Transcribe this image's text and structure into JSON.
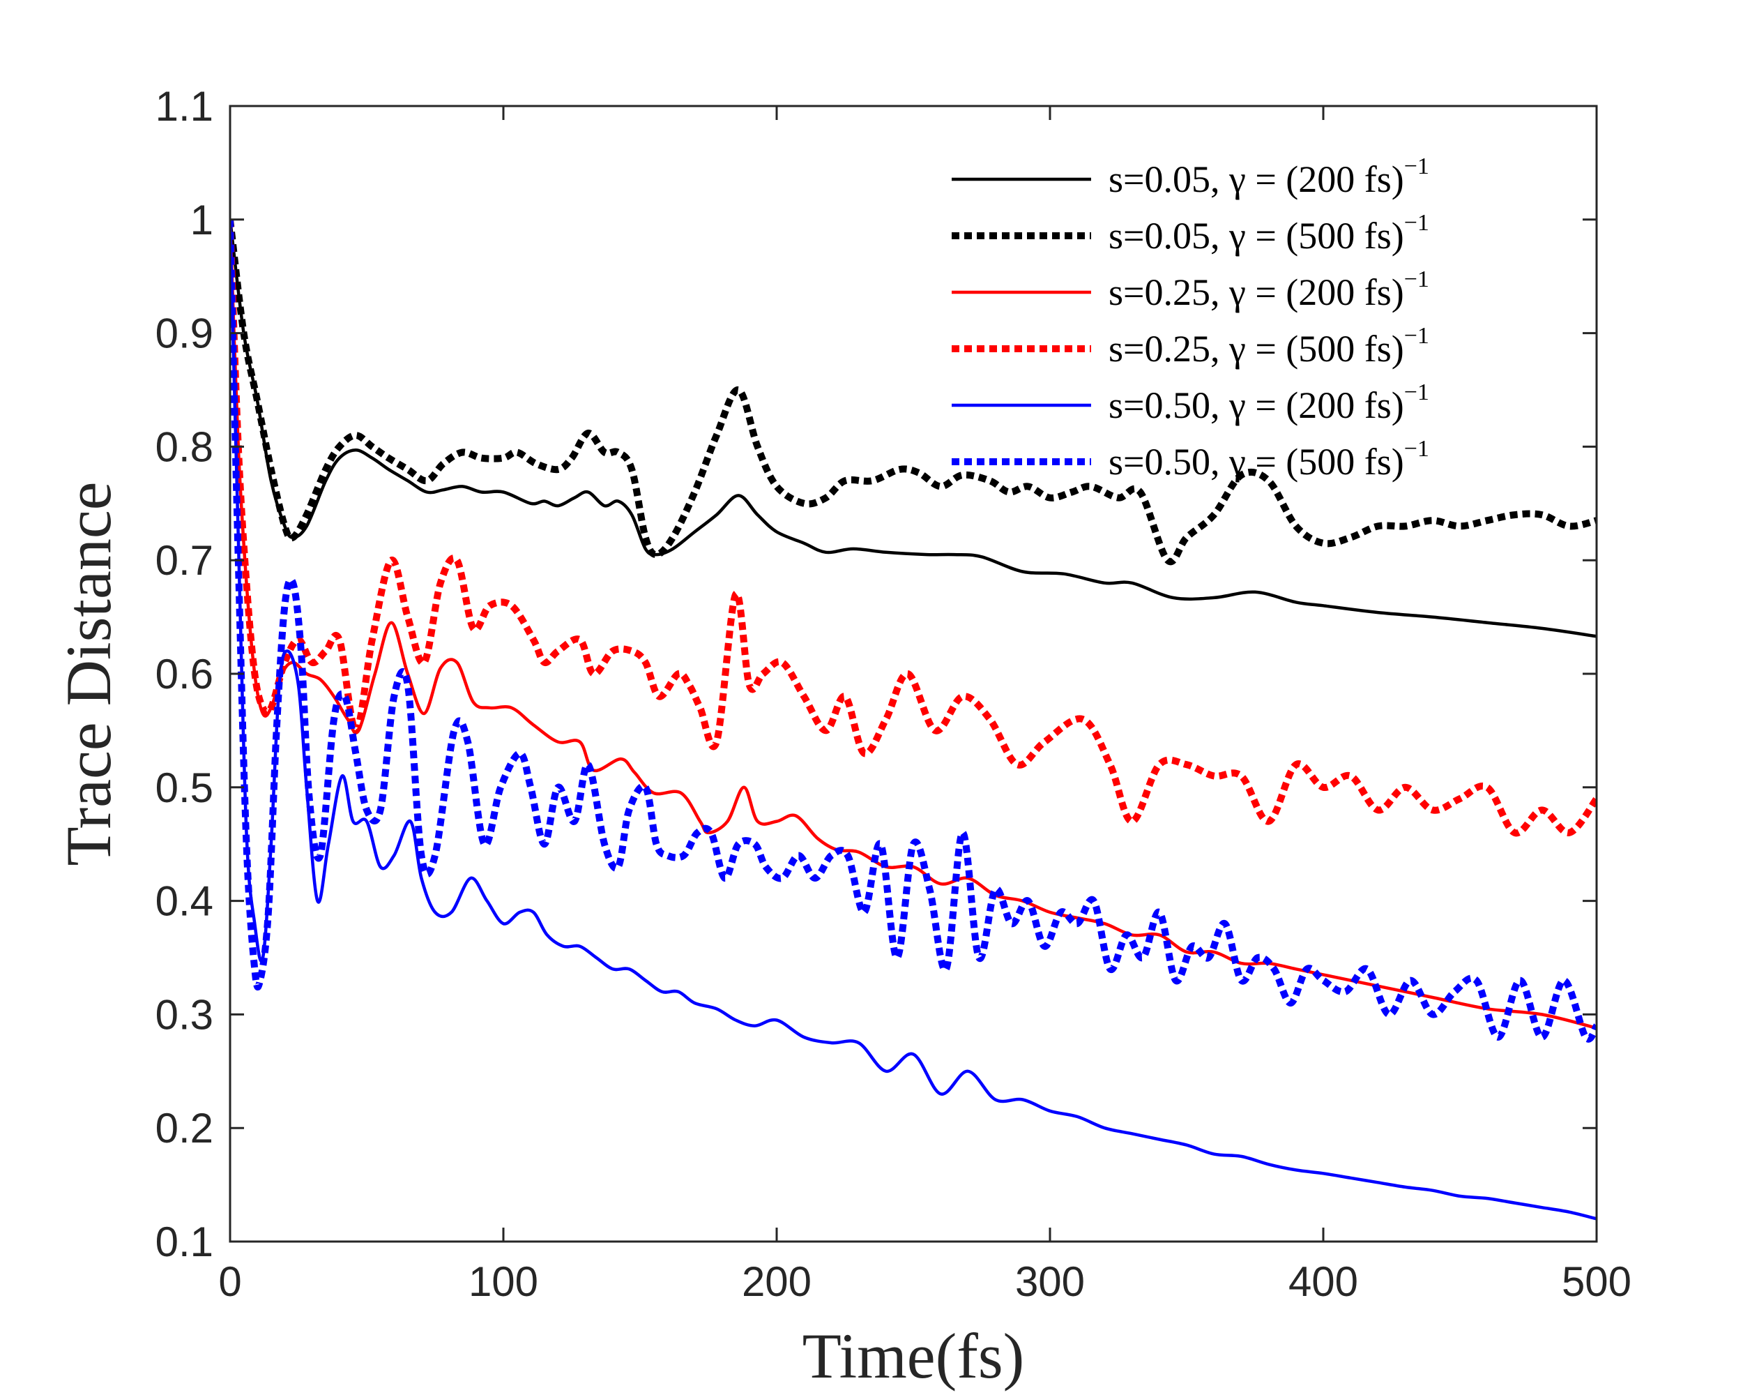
{
  "chart_data": {
    "type": "line",
    "xlabel": "Time(fs)",
    "ylabel": "Trace Distance",
    "xlim": [
      0,
      500
    ],
    "ylim": [
      0.1,
      1.1
    ],
    "x_ticks": [
      0,
      100,
      200,
      300,
      400,
      500
    ],
    "x_tick_labels": [
      "0",
      "100",
      "200",
      "300",
      "400",
      "500"
    ],
    "y_ticks": [
      0.1,
      0.2,
      0.3,
      0.4,
      0.5,
      0.6,
      0.7,
      0.8,
      0.9,
      1.0,
      1.1
    ],
    "y_tick_labels": [
      "0.1",
      "0.2",
      "0.3",
      "0.4",
      "0.5",
      "0.6",
      "0.7",
      "0.8",
      "0.9",
      "1",
      "1.1"
    ],
    "grid": false,
    "legend_position": "top-right",
    "series": [
      {
        "name": "s=0.05, γ = (200 fs)^−1",
        "legend_main": "s=0.05, γ = (200 fs)",
        "legend_sup": "−1",
        "color": "#000000",
        "style": "solid",
        "x": [
          0,
          5,
          10,
          15,
          20,
          23,
          28,
          35,
          40,
          46,
          52,
          58,
          65,
          72,
          78,
          85,
          92,
          100,
          110,
          115,
          120,
          126,
          131,
          137,
          142,
          147,
          152,
          156,
          162,
          170,
          178,
          186,
          193,
          200,
          210,
          218,
          228,
          240,
          255,
          265,
          275,
          290,
          305,
          320,
          330,
          345,
          360,
          375,
          390,
          400,
          420,
          440,
          460,
          480,
          500
        ],
        "y": [
          1.0,
          0.9,
          0.84,
          0.77,
          0.73,
          0.72,
          0.73,
          0.77,
          0.79,
          0.797,
          0.79,
          0.78,
          0.77,
          0.76,
          0.762,
          0.765,
          0.76,
          0.76,
          0.75,
          0.752,
          0.748,
          0.755,
          0.76,
          0.748,
          0.752,
          0.74,
          0.71,
          0.705,
          0.71,
          0.725,
          0.74,
          0.757,
          0.74,
          0.725,
          0.715,
          0.707,
          0.71,
          0.707,
          0.705,
          0.705,
          0.703,
          0.69,
          0.688,
          0.68,
          0.68,
          0.667,
          0.667,
          0.672,
          0.663,
          0.66,
          0.654,
          0.65,
          0.645,
          0.64,
          0.633
        ]
      },
      {
        "name": "s=0.05, γ = (500 fs)^−1",
        "legend_main": "s=0.05, γ = (500 fs)",
        "legend_sup": "−1",
        "color": "#000000",
        "style": "dotted",
        "x": [
          0,
          5,
          10,
          15,
          20,
          23,
          28,
          35,
          40,
          46,
          52,
          58,
          65,
          72,
          78,
          85,
          92,
          100,
          105,
          112,
          120,
          125,
          131,
          137,
          142,
          147,
          152,
          156,
          162,
          170,
          178,
          186,
          193,
          200,
          210,
          218,
          225,
          235,
          245,
          252,
          260,
          268,
          278,
          285,
          292,
          300,
          308,
          315,
          325,
          333,
          343,
          350,
          360,
          370,
          380,
          390,
          400,
          410,
          420,
          430,
          440,
          450,
          460,
          470,
          480,
          490,
          500
        ],
        "y": [
          1.0,
          0.9,
          0.84,
          0.78,
          0.73,
          0.72,
          0.74,
          0.78,
          0.8,
          0.81,
          0.8,
          0.79,
          0.78,
          0.77,
          0.785,
          0.795,
          0.79,
          0.79,
          0.795,
          0.785,
          0.78,
          0.79,
          0.812,
          0.795,
          0.795,
          0.78,
          0.72,
          0.705,
          0.72,
          0.76,
          0.81,
          0.85,
          0.8,
          0.765,
          0.75,
          0.755,
          0.77,
          0.77,
          0.78,
          0.777,
          0.765,
          0.775,
          0.77,
          0.76,
          0.765,
          0.755,
          0.76,
          0.765,
          0.755,
          0.76,
          0.7,
          0.72,
          0.74,
          0.775,
          0.77,
          0.73,
          0.715,
          0.72,
          0.73,
          0.73,
          0.735,
          0.73,
          0.735,
          0.74,
          0.74,
          0.73,
          0.735
        ]
      },
      {
        "name": "s=0.25, γ = (200 fs)^−1",
        "legend_main": "s=0.25, γ = (200 fs)",
        "legend_sup": "−1",
        "color": "#ff0000",
        "style": "solid",
        "x": [
          0,
          3,
          6,
          9,
          12,
          15,
          19,
          23,
          28,
          33,
          38,
          43,
          47,
          53,
          59,
          65,
          71,
          77,
          83,
          89,
          95,
          103,
          111,
          120,
          128,
          133,
          143,
          148,
          155,
          165,
          172,
          175,
          182,
          188,
          193,
          200,
          207,
          215,
          222,
          230,
          240,
          250,
          260,
          270,
          280,
          290,
          300,
          310,
          320,
          330,
          340,
          350,
          360,
          370,
          380,
          390,
          400,
          420,
          440,
          460,
          480,
          500
        ],
        "y": [
          1.0,
          0.8,
          0.68,
          0.6,
          0.565,
          0.57,
          0.6,
          0.61,
          0.6,
          0.595,
          0.58,
          0.56,
          0.55,
          0.6,
          0.645,
          0.6,
          0.565,
          0.605,
          0.61,
          0.575,
          0.57,
          0.57,
          0.555,
          0.54,
          0.54,
          0.515,
          0.525,
          0.513,
          0.495,
          0.495,
          0.47,
          0.46,
          0.47,
          0.5,
          0.47,
          0.47,
          0.475,
          0.455,
          0.445,
          0.443,
          0.43,
          0.43,
          0.415,
          0.42,
          0.405,
          0.4,
          0.39,
          0.385,
          0.38,
          0.37,
          0.37,
          0.355,
          0.355,
          0.345,
          0.345,
          0.34,
          0.335,
          0.325,
          0.315,
          0.305,
          0.3,
          0.288
        ]
      },
      {
        "name": "s=0.25, γ = (500 fs)^−1",
        "legend_main": "s=0.25, γ = (500 fs)",
        "legend_sup": "−1",
        "color": "#ff0000",
        "style": "dotted",
        "x": [
          0,
          3,
          6,
          9,
          12,
          15,
          20,
          25,
          30,
          35,
          40,
          46,
          52,
          59,
          65,
          71,
          77,
          83,
          89,
          95,
          103,
          111,
          115,
          120,
          128,
          133,
          140,
          147,
          152,
          157,
          164,
          168,
          172,
          178,
          185,
          190,
          195,
          202,
          210,
          218,
          225,
          232,
          240,
          248,
          258,
          268,
          278,
          288,
          298,
          312,
          322,
          330,
          340,
          350,
          360,
          370,
          380,
          390,
          400,
          410,
          420,
          430,
          440,
          450,
          460,
          470,
          480,
          490,
          500
        ],
        "y": [
          1.0,
          0.8,
          0.68,
          0.6,
          0.57,
          0.57,
          0.61,
          0.63,
          0.61,
          0.62,
          0.63,
          0.55,
          0.63,
          0.7,
          0.65,
          0.61,
          0.68,
          0.7,
          0.64,
          0.66,
          0.66,
          0.63,
          0.61,
          0.62,
          0.63,
          0.6,
          0.62,
          0.62,
          0.61,
          0.58,
          0.6,
          0.59,
          0.57,
          0.54,
          0.67,
          0.59,
          0.6,
          0.61,
          0.58,
          0.55,
          0.58,
          0.53,
          0.56,
          0.6,
          0.55,
          0.58,
          0.56,
          0.52,
          0.54,
          0.56,
          0.52,
          0.47,
          0.52,
          0.52,
          0.51,
          0.51,
          0.47,
          0.52,
          0.5,
          0.51,
          0.48,
          0.5,
          0.48,
          0.49,
          0.5,
          0.46,
          0.48,
          0.46,
          0.49
        ]
      },
      {
        "name": "s=0.50, γ = (200 fs)^−1",
        "legend_main": "s=0.50, γ = (200 fs)",
        "legend_sup": "−1",
        "color": "#0000ff",
        "style": "solid",
        "x": [
          0,
          3,
          6,
          9,
          12,
          15,
          18,
          21,
          25,
          28,
          32,
          36,
          41,
          45,
          50,
          55,
          60,
          66,
          70,
          75,
          81,
          88,
          94,
          100,
          106,
          111,
          116,
          122,
          128,
          134,
          140,
          146,
          152,
          158,
          164,
          170,
          178,
          185,
          192,
          200,
          210,
          220,
          230,
          240,
          250,
          260,
          270,
          280,
          290,
          300,
          310,
          320,
          330,
          340,
          350,
          360,
          370,
          380,
          390,
          400,
          410,
          420,
          430,
          440,
          450,
          460,
          470,
          480,
          490,
          500
        ],
        "y": [
          1.0,
          0.72,
          0.46,
          0.38,
          0.35,
          0.45,
          0.59,
          0.62,
          0.59,
          0.5,
          0.4,
          0.45,
          0.51,
          0.47,
          0.47,
          0.43,
          0.44,
          0.47,
          0.42,
          0.39,
          0.39,
          0.42,
          0.4,
          0.38,
          0.39,
          0.39,
          0.37,
          0.36,
          0.36,
          0.35,
          0.34,
          0.34,
          0.33,
          0.32,
          0.32,
          0.31,
          0.305,
          0.295,
          0.29,
          0.295,
          0.28,
          0.275,
          0.275,
          0.25,
          0.265,
          0.23,
          0.25,
          0.225,
          0.225,
          0.215,
          0.21,
          0.2,
          0.195,
          0.19,
          0.185,
          0.177,
          0.175,
          0.168,
          0.163,
          0.16,
          0.156,
          0.152,
          0.148,
          0.145,
          0.14,
          0.138,
          0.134,
          0.13,
          0.126,
          0.12
        ]
      },
      {
        "name": "s=0.50, γ = (500 fs)^−1",
        "legend_main": "s=0.50, γ = (500 fs)",
        "legend_sup": "−1",
        "color": "#0000ff",
        "style": "dotted",
        "x": [
          0,
          3,
          6,
          9,
          11,
          14,
          17,
          20,
          23,
          26,
          29,
          33,
          38,
          42,
          46,
          50,
          55,
          60,
          65,
          70,
          75,
          82,
          87,
          93,
          99,
          106,
          110,
          115,
          120,
          126,
          131,
          137,
          142,
          146,
          152,
          156,
          160,
          166,
          171,
          176,
          181,
          186,
          192,
          196,
          202,
          208,
          214,
          220,
          226,
          232,
          238,
          244,
          250,
          256,
          262,
          268,
          274,
          280,
          286,
          292,
          298,
          304,
          310,
          316,
          322,
          328,
          334,
          340,
          346,
          352,
          358,
          364,
          370,
          376,
          382,
          388,
          394,
          400,
          408,
          416,
          424,
          432,
          440,
          448,
          456,
          464,
          472,
          480,
          488,
          496,
          500
        ],
        "y": [
          1.0,
          0.7,
          0.45,
          0.34,
          0.33,
          0.39,
          0.55,
          0.66,
          0.68,
          0.62,
          0.49,
          0.44,
          0.56,
          0.58,
          0.53,
          0.48,
          0.48,
          0.58,
          0.59,
          0.44,
          0.44,
          0.55,
          0.54,
          0.45,
          0.5,
          0.53,
          0.5,
          0.45,
          0.5,
          0.47,
          0.52,
          0.45,
          0.43,
          0.48,
          0.5,
          0.45,
          0.44,
          0.44,
          0.46,
          0.46,
          0.42,
          0.45,
          0.45,
          0.43,
          0.42,
          0.44,
          0.42,
          0.44,
          0.44,
          0.39,
          0.45,
          0.35,
          0.45,
          0.41,
          0.34,
          0.46,
          0.35,
          0.41,
          0.38,
          0.4,
          0.36,
          0.39,
          0.38,
          0.4,
          0.34,
          0.37,
          0.35,
          0.39,
          0.33,
          0.36,
          0.35,
          0.38,
          0.33,
          0.35,
          0.34,
          0.31,
          0.34,
          0.33,
          0.32,
          0.34,
          0.3,
          0.33,
          0.3,
          0.32,
          0.33,
          0.28,
          0.33,
          0.28,
          0.33,
          0.28,
          0.29
        ]
      }
    ]
  }
}
